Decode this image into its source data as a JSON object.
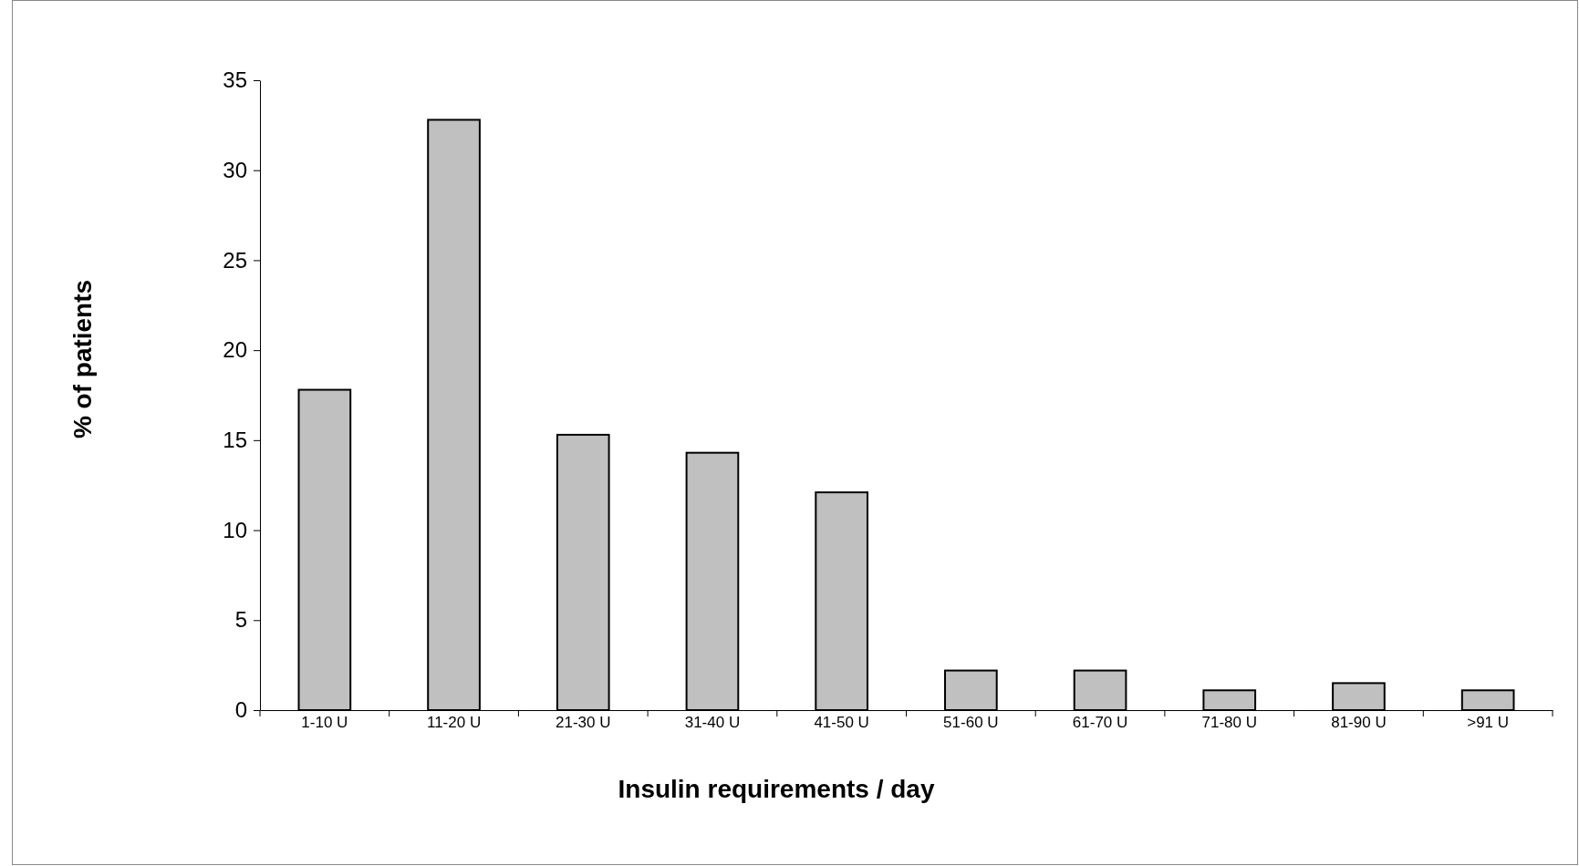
{
  "chart_data": {
    "type": "bar",
    "xlabel": "Insulin requirements / day",
    "ylabel": "% of patients",
    "categories": [
      "1-10 U",
      "11-20 U",
      "21-30 U",
      "31-40 U",
      "41-50 U",
      "51-60 U",
      "61-70 U",
      "71-80 U",
      "81-90 U",
      ">91 U"
    ],
    "values": [
      17.8,
      32.8,
      15.3,
      14.3,
      12.1,
      2.2,
      2.2,
      1.1,
      1.5,
      1.1
    ],
    "color": "#c0c0c0",
    "ylim": [
      0,
      35
    ],
    "yticks": [
      0,
      5,
      10,
      15,
      20,
      25,
      30,
      35
    ]
  }
}
